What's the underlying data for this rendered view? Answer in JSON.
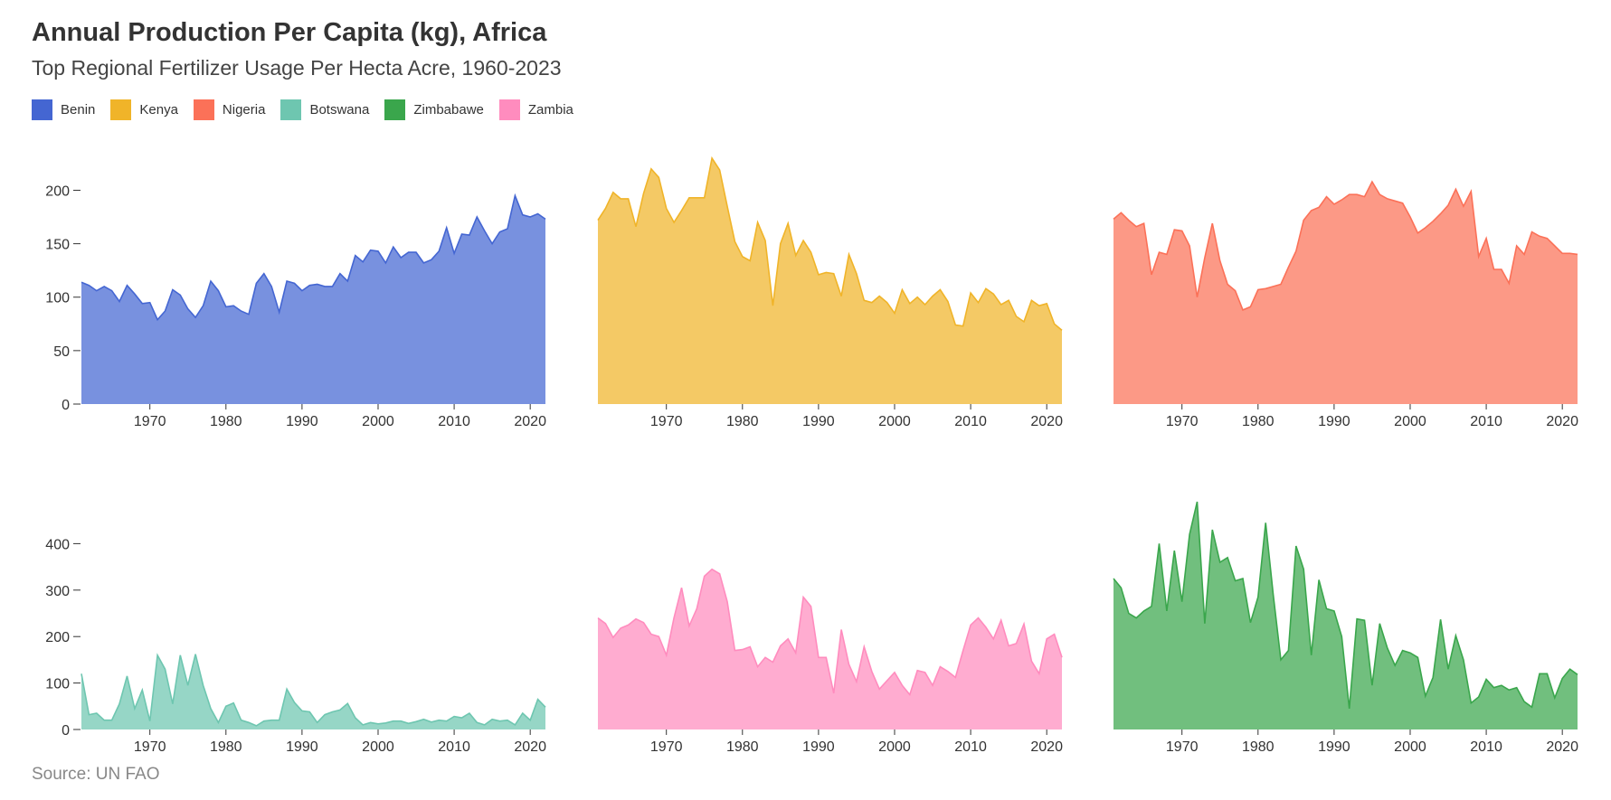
{
  "title": "Annual Production Per Capita (kg), Africa",
  "subtitle": "Top Regional Fertilizer Usage Per Hecta Acre, 1960-2023",
  "source": "Source: UN FAO",
  "legend": [
    {
      "label": "Benin",
      "color": "#4466d2"
    },
    {
      "label": "Kenya",
      "color": "#f0b429"
    },
    {
      "label": "Nigeria",
      "color": "#fb7158"
    },
    {
      "label": "Botswana",
      "color": "#6ec6b0"
    },
    {
      "label": "Zimbabawe",
      "color": "#3aa64c"
    },
    {
      "label": "Zambia",
      "color": "#ff8cbe"
    }
  ],
  "chart_data": [
    {
      "type": "area",
      "series_name": "Benin",
      "color": "#4466d2",
      "xlim": [
        1961,
        2022
      ],
      "ylim": [
        0,
        230
      ],
      "y_ticks": [
        0,
        50,
        100,
        150,
        200
      ],
      "x_ticks": [
        1970,
        1980,
        1990,
        2000,
        2010,
        2020
      ],
      "show_y_axis": true,
      "x": [
        1961,
        1962,
        1963,
        1964,
        1965,
        1966,
        1967,
        1968,
        1969,
        1970,
        1971,
        1972,
        1973,
        1974,
        1975,
        1976,
        1977,
        1978,
        1979,
        1980,
        1981,
        1982,
        1983,
        1984,
        1985,
        1986,
        1987,
        1988,
        1989,
        1990,
        1991,
        1992,
        1993,
        1994,
        1995,
        1996,
        1997,
        1998,
        1999,
        2000,
        2001,
        2002,
        2003,
        2004,
        2005,
        2006,
        2007,
        2008,
        2009,
        2010,
        2011,
        2012,
        2013,
        2014,
        2015,
        2016,
        2017,
        2018,
        2019,
        2020,
        2021,
        2022
      ],
      "y": [
        114,
        111,
        106,
        110,
        106,
        96,
        111,
        103,
        94,
        95,
        79,
        87,
        107,
        102,
        89,
        81,
        92,
        115,
        106,
        91,
        92,
        87,
        84,
        113,
        122,
        110,
        86,
        115,
        113,
        106,
        111,
        112,
        110,
        110,
        122,
        115,
        139,
        133,
        144,
        143,
        132,
        147,
        137,
        142,
        142,
        132,
        135,
        143,
        165,
        141,
        159,
        158,
        175,
        162,
        150,
        161,
        164,
        195,
        177,
        175,
        178,
        173
      ]
    },
    {
      "type": "area",
      "series_name": "Kenya",
      "color": "#f0b429",
      "xlim": [
        1961,
        2022
      ],
      "ylim": [
        0,
        230
      ],
      "y_ticks": [
        0,
        50,
        100,
        150,
        200
      ],
      "x_ticks": [
        1970,
        1980,
        1990,
        2000,
        2010,
        2020
      ],
      "show_y_axis": false,
      "x": [
        1961,
        1962,
        1963,
        1964,
        1965,
        1966,
        1967,
        1968,
        1969,
        1970,
        1971,
        1972,
        1973,
        1974,
        1975,
        1976,
        1977,
        1978,
        1979,
        1980,
        1981,
        1982,
        1983,
        1984,
        1985,
        1986,
        1987,
        1988,
        1989,
        1990,
        1991,
        1992,
        1993,
        1994,
        1995,
        1996,
        1997,
        1998,
        1999,
        2000,
        2001,
        2002,
        2003,
        2004,
        2005,
        2006,
        2007,
        2008,
        2009,
        2010,
        2011,
        2012,
        2013,
        2014,
        2015,
        2016,
        2017,
        2018,
        2019,
        2020,
        2021,
        2022
      ],
      "y": [
        172,
        183,
        198,
        192,
        192,
        166,
        197,
        220,
        212,
        183,
        170,
        181,
        193,
        193,
        193,
        230,
        219,
        185,
        152,
        138,
        134,
        170,
        153,
        92,
        150,
        169,
        139,
        153,
        142,
        121,
        123,
        122,
        101,
        140,
        122,
        97,
        95,
        101,
        95,
        85,
        107,
        94,
        100,
        93,
        101,
        107,
        96,
        74,
        73,
        104,
        95,
        108,
        103,
        93,
        97,
        82,
        77,
        97,
        92,
        94,
        75,
        69
      ]
    },
    {
      "type": "area",
      "series_name": "Nigeria",
      "color": "#fb7158",
      "xlim": [
        1961,
        2022
      ],
      "ylim": [
        0,
        230
      ],
      "y_ticks": [
        0,
        50,
        100,
        150,
        200
      ],
      "x_ticks": [
        1970,
        1980,
        1990,
        2000,
        2010,
        2020
      ],
      "show_y_axis": false,
      "x": [
        1961,
        1962,
        1963,
        1964,
        1965,
        1966,
        1967,
        1968,
        1969,
        1970,
        1971,
        1972,
        1973,
        1974,
        1975,
        1976,
        1977,
        1978,
        1979,
        1980,
        1981,
        1982,
        1983,
        1984,
        1985,
        1986,
        1987,
        1988,
        1989,
        1990,
        1991,
        1992,
        1993,
        1994,
        1995,
        1996,
        1997,
        1998,
        1999,
        2000,
        2001,
        2002,
        2003,
        2004,
        2005,
        2006,
        2007,
        2008,
        2009,
        2010,
        2011,
        2012,
        2013,
        2014,
        2015,
        2016,
        2017,
        2018,
        2019,
        2020,
        2021,
        2022
      ],
      "y": [
        173,
        179,
        172,
        166,
        169,
        121,
        142,
        140,
        163,
        162,
        148,
        100,
        137,
        169,
        134,
        112,
        106,
        88,
        91,
        107,
        108,
        110,
        112,
        128,
        143,
        172,
        181,
        184,
        194,
        187,
        191,
        196,
        196,
        194,
        208,
        196,
        192,
        190,
        188,
        175,
        160,
        165,
        171,
        178,
        186,
        201,
        185,
        199,
        138,
        155,
        126,
        126,
        113,
        148,
        140,
        161,
        157,
        155,
        148,
        141,
        141,
        140
      ]
    },
    {
      "type": "area",
      "series_name": "Botswana",
      "color": "#6ec6b0",
      "xlim": [
        1961,
        2022
      ],
      "ylim": [
        0,
        500
      ],
      "y_ticks": [
        0,
        100,
        200,
        300,
        400
      ],
      "x_ticks": [
        1970,
        1980,
        1990,
        2000,
        2010,
        2020
      ],
      "show_y_axis": true,
      "x": [
        1961,
        1962,
        1963,
        1964,
        1965,
        1966,
        1967,
        1968,
        1969,
        1970,
        1971,
        1972,
        1973,
        1974,
        1975,
        1976,
        1977,
        1978,
        1979,
        1980,
        1981,
        1982,
        1983,
        1984,
        1985,
        1986,
        1987,
        1988,
        1989,
        1990,
        1991,
        1992,
        1993,
        1994,
        1995,
        1996,
        1997,
        1998,
        1999,
        2000,
        2001,
        2002,
        2003,
        2004,
        2005,
        2006,
        2007,
        2008,
        2009,
        2010,
        2011,
        2012,
        2013,
        2014,
        2015,
        2016,
        2017,
        2018,
        2019,
        2020,
        2021,
        2022
      ],
      "y": [
        120,
        32,
        35,
        20,
        20,
        55,
        115,
        45,
        85,
        18,
        160,
        130,
        55,
        160,
        95,
        162,
        95,
        45,
        15,
        50,
        57,
        20,
        15,
        8,
        18,
        20,
        20,
        87,
        58,
        40,
        38,
        15,
        32,
        38,
        42,
        56,
        25,
        10,
        15,
        12,
        14,
        18,
        18,
        13,
        17,
        22,
        16,
        20,
        18,
        28,
        25,
        35,
        15,
        10,
        22,
        18,
        20,
        10,
        35,
        20,
        65,
        48
      ]
    },
    {
      "type": "area",
      "series_name": "Zambia",
      "color": "#ff8cbe",
      "xlim": [
        1961,
        2022
      ],
      "ylim": [
        0,
        500
      ],
      "y_ticks": [
        0,
        100,
        200,
        300,
        400
      ],
      "x_ticks": [
        1970,
        1980,
        1990,
        2000,
        2010,
        2020
      ],
      "show_y_axis": false,
      "x": [
        1961,
        1962,
        1963,
        1964,
        1965,
        1966,
        1967,
        1968,
        1969,
        1970,
        1971,
        1972,
        1973,
        1974,
        1975,
        1976,
        1977,
        1978,
        1979,
        1980,
        1981,
        1982,
        1983,
        1984,
        1985,
        1986,
        1987,
        1988,
        1989,
        1990,
        1991,
        1992,
        1993,
        1994,
        1995,
        1996,
        1997,
        1998,
        1999,
        2000,
        2001,
        2002,
        2003,
        2004,
        2005,
        2006,
        2007,
        2008,
        2009,
        2010,
        2011,
        2012,
        2013,
        2014,
        2015,
        2016,
        2017,
        2018,
        2019,
        2020,
        2021,
        2022
      ],
      "y": [
        240,
        228,
        198,
        218,
        225,
        238,
        230,
        205,
        200,
        160,
        240,
        305,
        223,
        260,
        330,
        345,
        335,
        275,
        170,
        172,
        178,
        135,
        155,
        145,
        180,
        195,
        165,
        285,
        265,
        155,
        155,
        78,
        215,
        140,
        103,
        178,
        125,
        87,
        105,
        123,
        95,
        75,
        127,
        123,
        95,
        135,
        125,
        112,
        170,
        225,
        240,
        220,
        195,
        235,
        180,
        185,
        227,
        147,
        120,
        195,
        205,
        155
      ]
    },
    {
      "type": "area",
      "series_name": "Zimbabawe",
      "color": "#3aa64c",
      "xlim": [
        1961,
        2022
      ],
      "ylim": [
        0,
        500
      ],
      "y_ticks": [
        0,
        100,
        200,
        300,
        400
      ],
      "x_ticks": [
        1970,
        1980,
        1990,
        2000,
        2010,
        2020
      ],
      "show_y_axis": false,
      "x": [
        1961,
        1962,
        1963,
        1964,
        1965,
        1966,
        1967,
        1968,
        1969,
        1970,
        1971,
        1972,
        1973,
        1974,
        1975,
        1976,
        1977,
        1978,
        1979,
        1980,
        1981,
        1982,
        1983,
        1984,
        1985,
        1986,
        1987,
        1988,
        1989,
        1990,
        1991,
        1992,
        1993,
        1994,
        1995,
        1996,
        1997,
        1998,
        1999,
        2000,
        2001,
        2002,
        2003,
        2004,
        2005,
        2006,
        2007,
        2008,
        2009,
        2010,
        2011,
        2012,
        2013,
        2014,
        2015,
        2016,
        2017,
        2018,
        2019,
        2020,
        2021,
        2022
      ],
      "y": [
        325,
        305,
        250,
        240,
        255,
        265,
        400,
        255,
        385,
        275,
        420,
        490,
        228,
        430,
        360,
        370,
        320,
        325,
        230,
        285,
        445,
        290,
        150,
        170,
        395,
        345,
        160,
        322,
        260,
        255,
        200,
        45,
        238,
        235,
        95,
        228,
        175,
        138,
        170,
        165,
        155,
        72,
        112,
        237,
        130,
        202,
        150,
        57,
        70,
        108,
        90,
        95,
        85,
        90,
        60,
        48,
        120,
        120,
        68,
        110,
        130,
        118
      ]
    }
  ]
}
